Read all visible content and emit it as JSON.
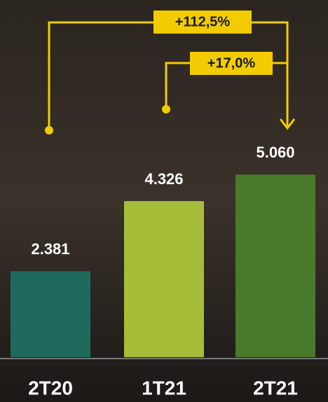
{
  "chart_data": {
    "type": "bar",
    "categories": [
      "2T20",
      "1T21",
      "2T21"
    ],
    "series": [
      {
        "colors": [
          "#1e6b5e",
          "#a6bd3a",
          "#4a7a2b"
        ],
        "values": [
          2381,
          4326,
          5060
        ],
        "value_labels": [
          "2.381",
          "4.326",
          "5.060"
        ]
      }
    ],
    "ylim": [
      0,
      9900
    ],
    "annotations": [
      "+112,5%",
      "+17,0%"
    ]
  }
}
